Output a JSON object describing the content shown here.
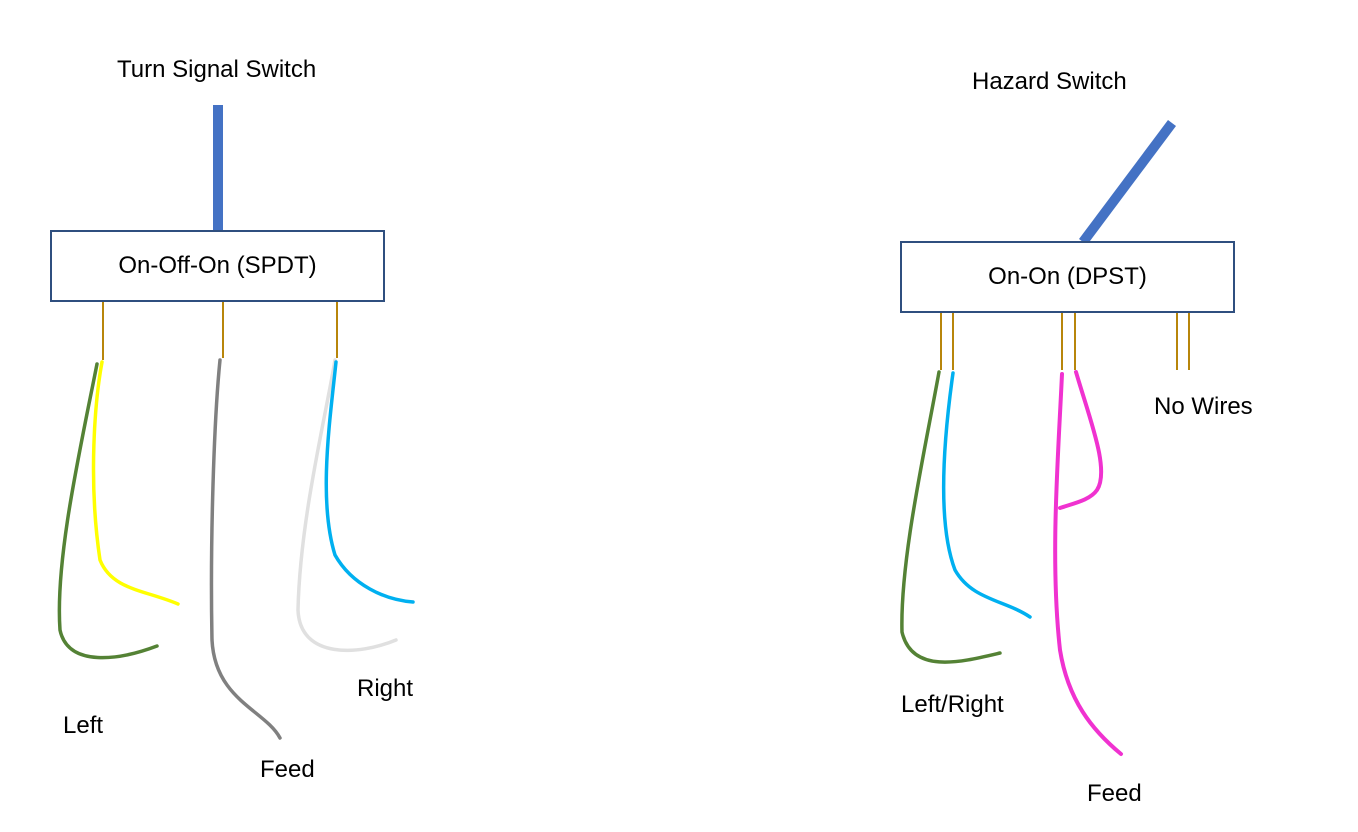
{
  "turn_signal": {
    "title": "Turn Signal Switch",
    "switch_type": "On-Off-On (SPDT)",
    "labels": {
      "left": "Left",
      "feed": "Feed",
      "right": "Right"
    }
  },
  "hazard": {
    "title": "Hazard Switch",
    "switch_type": "On-On (DPST)",
    "labels": {
      "left_right": "Left/Right",
      "feed": "Feed",
      "no_wires": "No Wires"
    }
  },
  "colors": {
    "lever": "#4472c4",
    "box_border": "#2f4f7f",
    "terminal": "#b8860b",
    "wire_green": "#548235",
    "wire_yellow": "#ffff00",
    "wire_gray": "#808080",
    "wire_light_gray": "#e0e0e0",
    "wire_blue": "#00b0f0",
    "wire_magenta": "#f032d0"
  }
}
